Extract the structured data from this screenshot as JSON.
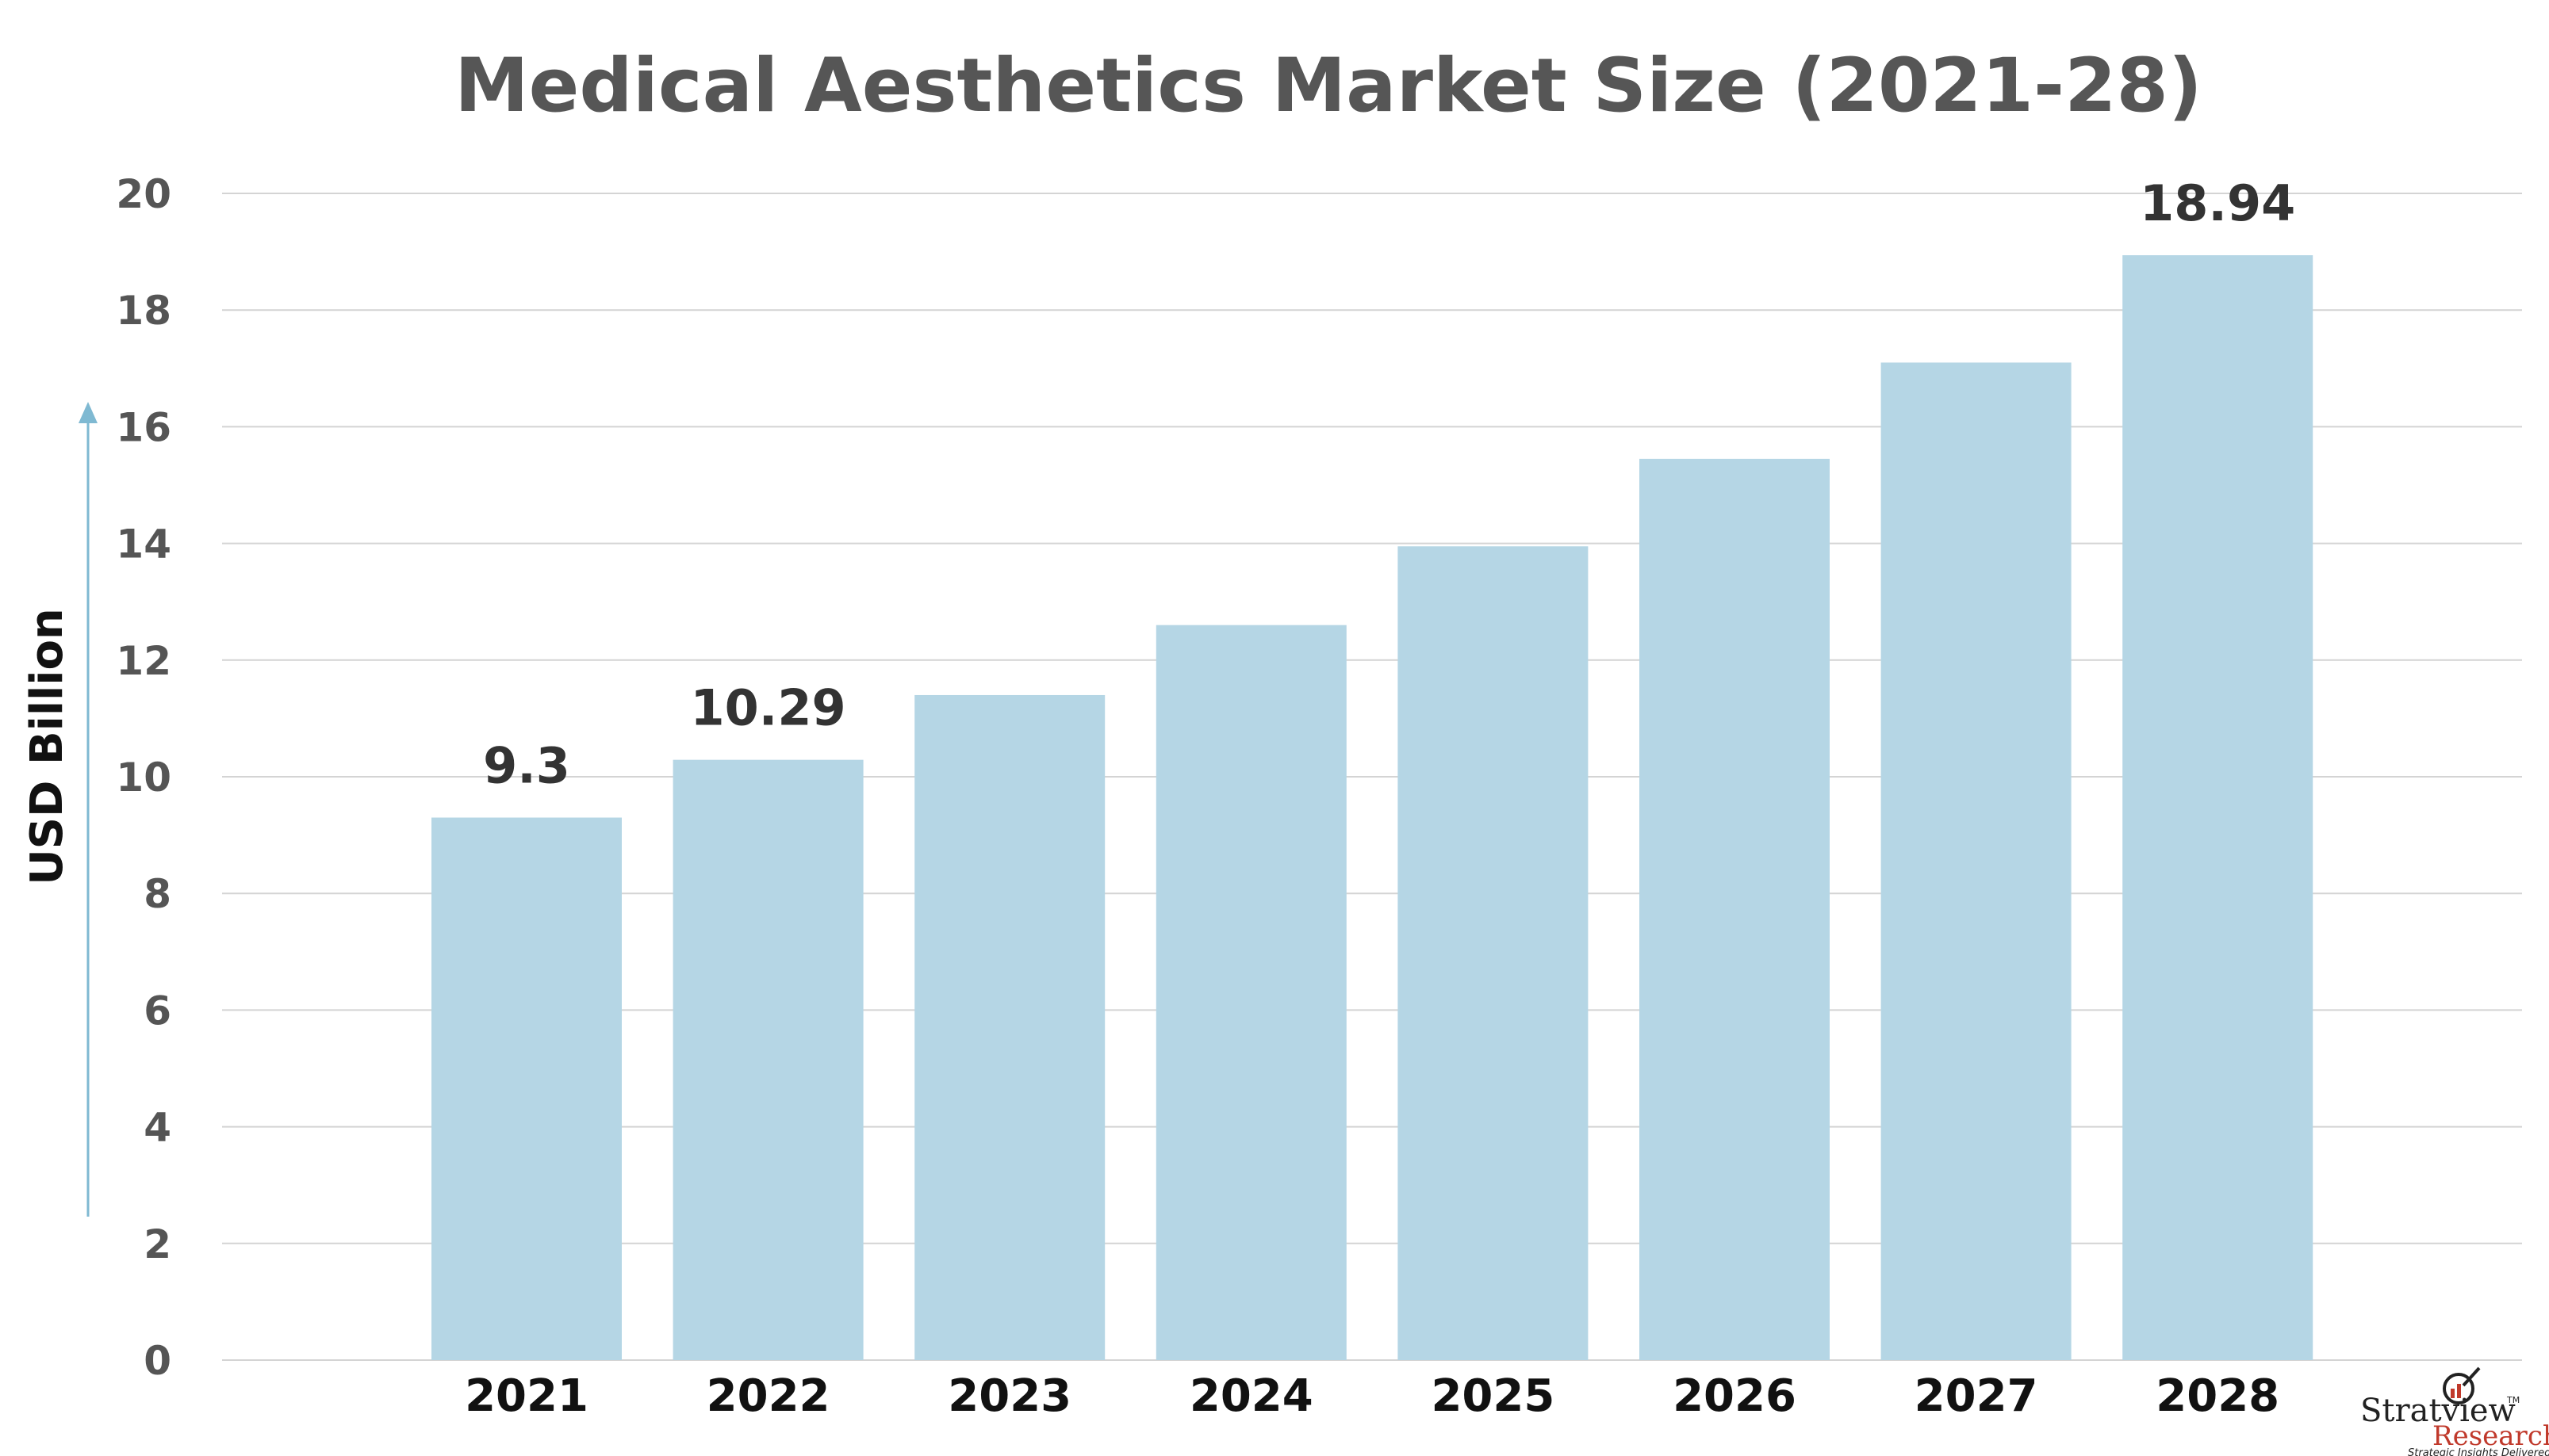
{
  "colors": {
    "bar": "#b5d6e5",
    "title": "#565656",
    "tick": "#555555",
    "category": "#111111",
    "ylabel": "#111111",
    "datalabel": "#333333",
    "grid": "#d4d4d4",
    "arrow": "#7fb9d2",
    "logo_dark": "#222222",
    "logo_red": "#c0392b"
  },
  "logo": {
    "word1": "Stratview",
    "word2": "Research",
    "tagline": "Strategic Insights Delivered",
    "tm": "TM"
  },
  "chart_data": {
    "type": "bar",
    "title": "Medical Aesthetics Market Size (2021-28)",
    "xlabel": "",
    "ylabel": "USD Billion",
    "categories": [
      "2021",
      "2022",
      "2023",
      "2024",
      "2025",
      "2026",
      "2027",
      "2028"
    ],
    "values": [
      9.3,
      10.29,
      11.4,
      12.6,
      13.95,
      15.45,
      17.1,
      18.94
    ],
    "data_labels": [
      "9.3",
      "10.29",
      "",
      "",
      "",
      "",
      "",
      "18.94"
    ],
    "ylim": [
      0,
      20
    ],
    "yticks": [
      0,
      2,
      4,
      6,
      8,
      10,
      12,
      14,
      16,
      18,
      20
    ],
    "grid": true,
    "legend": "none"
  }
}
